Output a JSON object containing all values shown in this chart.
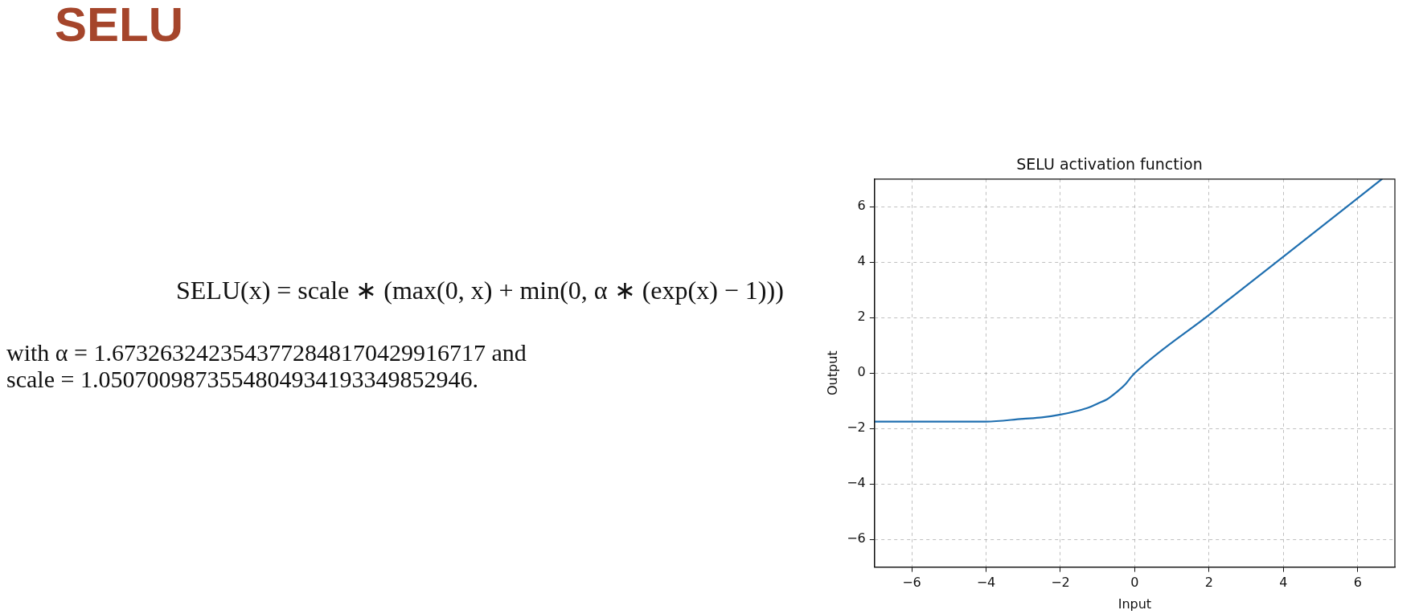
{
  "chart_data": {
    "type": "line",
    "title": "SELU activation function",
    "xlabel": "Input",
    "ylabel": "Output",
    "x": [
      -7,
      -6,
      -5,
      -4,
      -3,
      -2.5,
      -2,
      -1.5,
      -1.25,
      -1,
      -0.75,
      -0.5,
      -0.25,
      -0.1,
      0,
      2,
      4,
      6.65
    ],
    "series": [
      {
        "color": "#1f6fb0",
        "values": [
          -1.75,
          -1.75,
          -1.75,
          -1.75,
          -1.65,
          -1.6,
          -1.5,
          -1.35,
          -1.25,
          -1.1,
          -0.95,
          -0.7,
          -0.4,
          -0.15,
          0,
          2.1,
          4.2,
          7
        ]
      }
    ],
    "xlim": [
      -7,
      7
    ],
    "ylim": [
      -7,
      7
    ],
    "xticks": [
      {
        "value": -6,
        "label": "−6"
      },
      {
        "value": -4,
        "label": "−4"
      },
      {
        "value": -2,
        "label": "−2"
      },
      0,
      2,
      4,
      6
    ],
    "yticks": [
      {
        "value": -6,
        "label": "−6"
      },
      {
        "value": -4,
        "label": "−4"
      },
      {
        "value": -2,
        "label": "−2"
      },
      0,
      2,
      4,
      6
    ],
    "grid": true,
    "legend": false,
    "marker": "none",
    "line_style": "solid",
    "annotations": [
      "SELU",
      "SELU(x) = scale ∗ (max(0, x) + min(0, α ∗ (exp(x) − 1)))",
      "with α = 1.6732632423543772848170429916717 and",
      "scale = 1.0507009873554804934193349852946."
    ]
  }
}
